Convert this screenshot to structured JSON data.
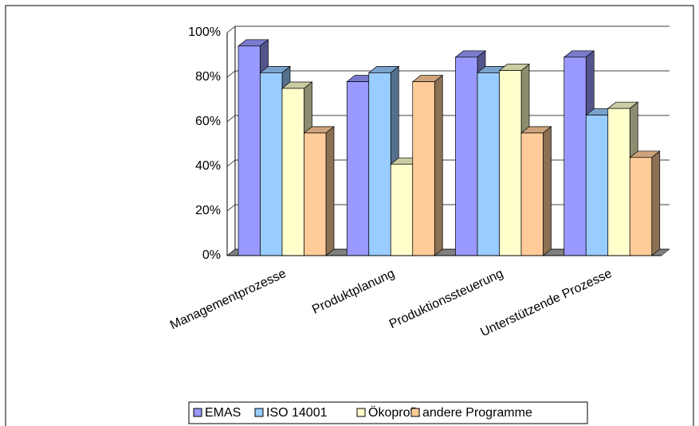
{
  "chart_data": {
    "type": "bar3d",
    "categories": [
      "Managementprozesse",
      "Produktplanung",
      "Produktionssteuerung",
      "Unterstützende Prozesse"
    ],
    "series": [
      {
        "name": "EMAS",
        "color": "#9999ff",
        "values": [
          94,
          78,
          89,
          89
        ]
      },
      {
        "name": "ISO 14001",
        "color": "#99ccff",
        "values": [
          82,
          82,
          82,
          63
        ]
      },
      {
        "name": "Ökoprofit",
        "color": "#ffffcc",
        "values": [
          75,
          41,
          83,
          66
        ]
      },
      {
        "name": "andere Programme",
        "color": "#ffcc99",
        "values": [
          55,
          78,
          55,
          44
        ]
      }
    ],
    "ylim": [
      0,
      100
    ],
    "yticks": [
      {
        "value": 0,
        "label": "0%"
      },
      {
        "value": 20,
        "label": "20%"
      },
      {
        "value": 40,
        "label": "40%"
      },
      {
        "value": 60,
        "label": "60%"
      },
      {
        "value": 80,
        "label": "80%"
      },
      {
        "value": 100,
        "label": "100%"
      }
    ],
    "grid": true,
    "legend": "bottom"
  }
}
